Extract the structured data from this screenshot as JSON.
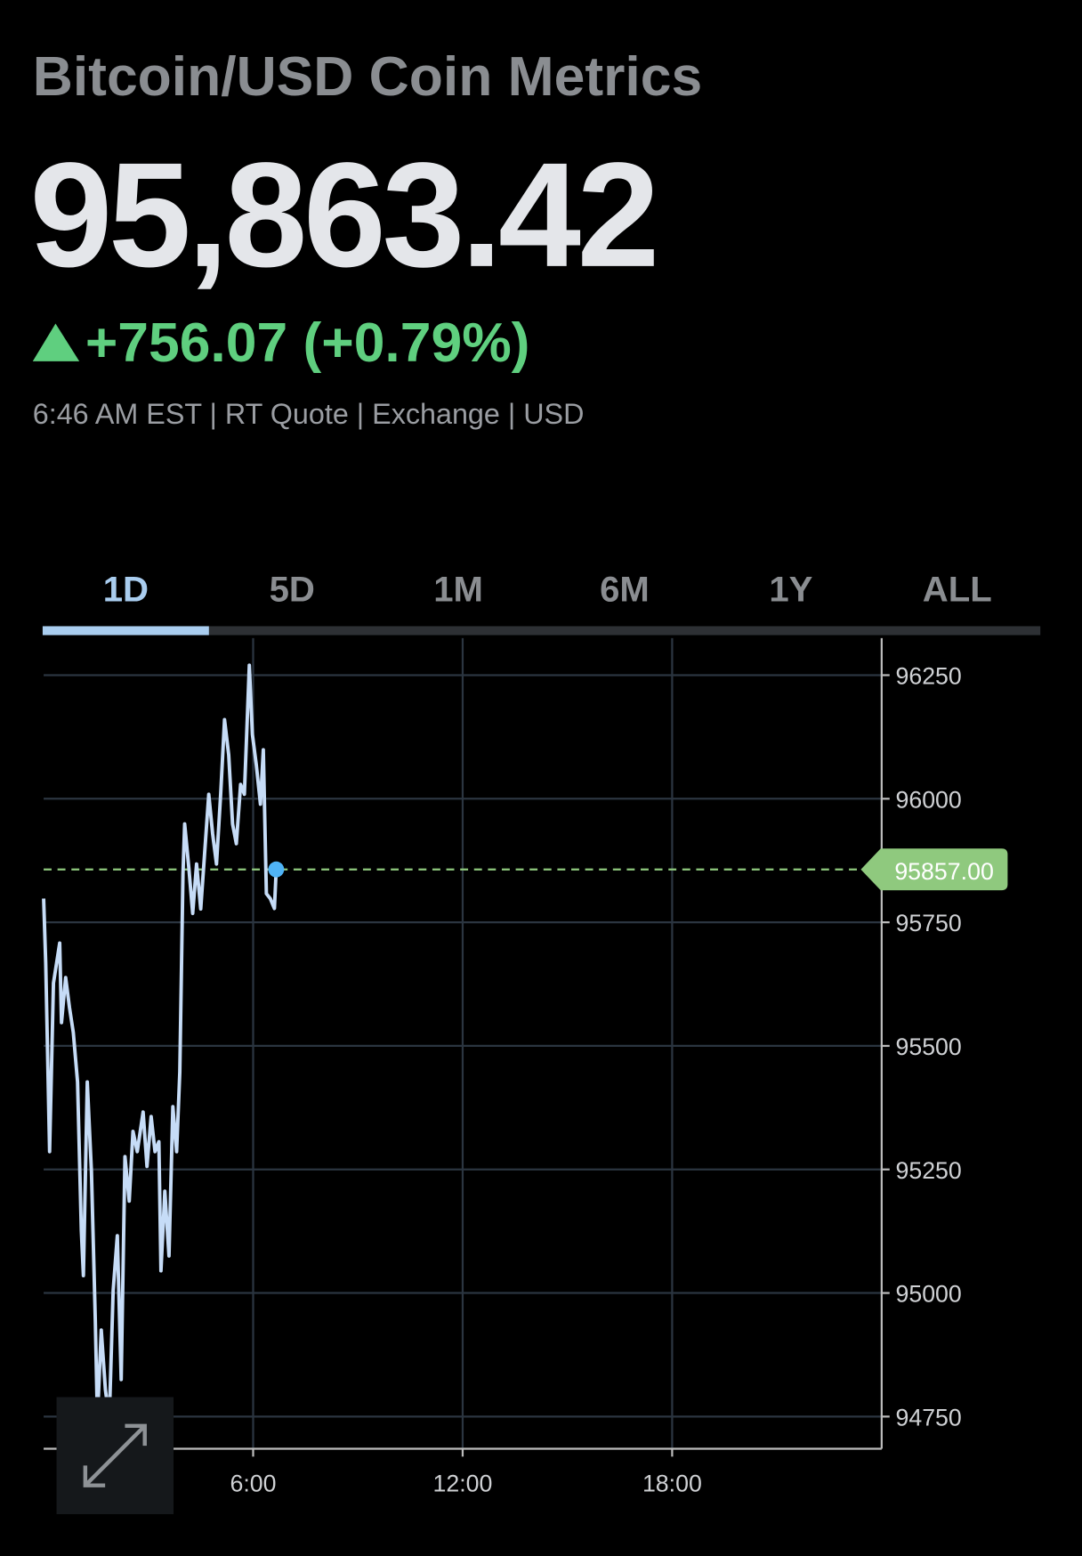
{
  "header": {
    "title": "Bitcoin/USD Coin Metrics",
    "price": "95,863.42",
    "change": "+756.07 (+0.79%)",
    "meta": "6:46 AM EST | RT Quote | Exchange | USD"
  },
  "tabs": {
    "items": [
      "1D",
      "5D",
      "1M",
      "6M",
      "1Y",
      "ALL"
    ],
    "active": 0
  },
  "chart_data": {
    "type": "line",
    "color": "#c6dcf7",
    "x": [
      0,
      0.06,
      0.17,
      0.28,
      0.46,
      0.51,
      0.63,
      0.74,
      0.85,
      0.97,
      1.08,
      1.14,
      1.25,
      1.37,
      1.48,
      1.54,
      1.65,
      1.77,
      1.88,
      1.99,
      2.11,
      2.22,
      2.33,
      2.45,
      2.56,
      2.68,
      2.85,
      2.96,
      3.08,
      3.19,
      3.3,
      3.36,
      3.47,
      3.59,
      3.7,
      3.81,
      3.9,
      3.99,
      4.04,
      4.16,
      4.27,
      4.38,
      4.5,
      4.61,
      4.73,
      4.84,
      4.95,
      5.07,
      5.18,
      5.3,
      5.41,
      5.52,
      5.64,
      5.75,
      5.89,
      5.98,
      6.09,
      6.21,
      6.29,
      6.38,
      6.49,
      6.61,
      6.66
    ],
    "values": [
      95798,
      95668,
      95286,
      95627,
      95708,
      95547,
      95638,
      95577,
      95527,
      95427,
      95126,
      95035,
      95427,
      95246,
      94945,
      94744,
      94925,
      94804,
      94744,
      95005,
      95116,
      94825,
      95276,
      95186,
      95327,
      95286,
      95366,
      95256,
      95357,
      95286,
      95306,
      95045,
      95206,
      95075,
      95377,
      95286,
      95447,
      95848,
      95949,
      95858,
      95768,
      95868,
      95777,
      95889,
      96009,
      95929,
      95868,
      96009,
      96160,
      96089,
      95949,
      95909,
      96029,
      96009,
      96270,
      96130,
      96069,
      95989,
      96099,
      95808,
      95798,
      95778,
      95857
    ],
    "xlim": [
      0,
      24
    ],
    "xticks": [
      {
        "value": 6,
        "label": "6:00"
      },
      {
        "value": 12,
        "label": "12:00"
      },
      {
        "value": 18,
        "label": "18:00"
      }
    ],
    "ylim": [
      94685,
      96325
    ],
    "yticks": [
      94750,
      95000,
      95250,
      95500,
      95750,
      96000,
      96250
    ],
    "grid": true,
    "reference_line": {
      "value": 95857,
      "label": "95857.00",
      "color": "#8fc97e"
    }
  }
}
